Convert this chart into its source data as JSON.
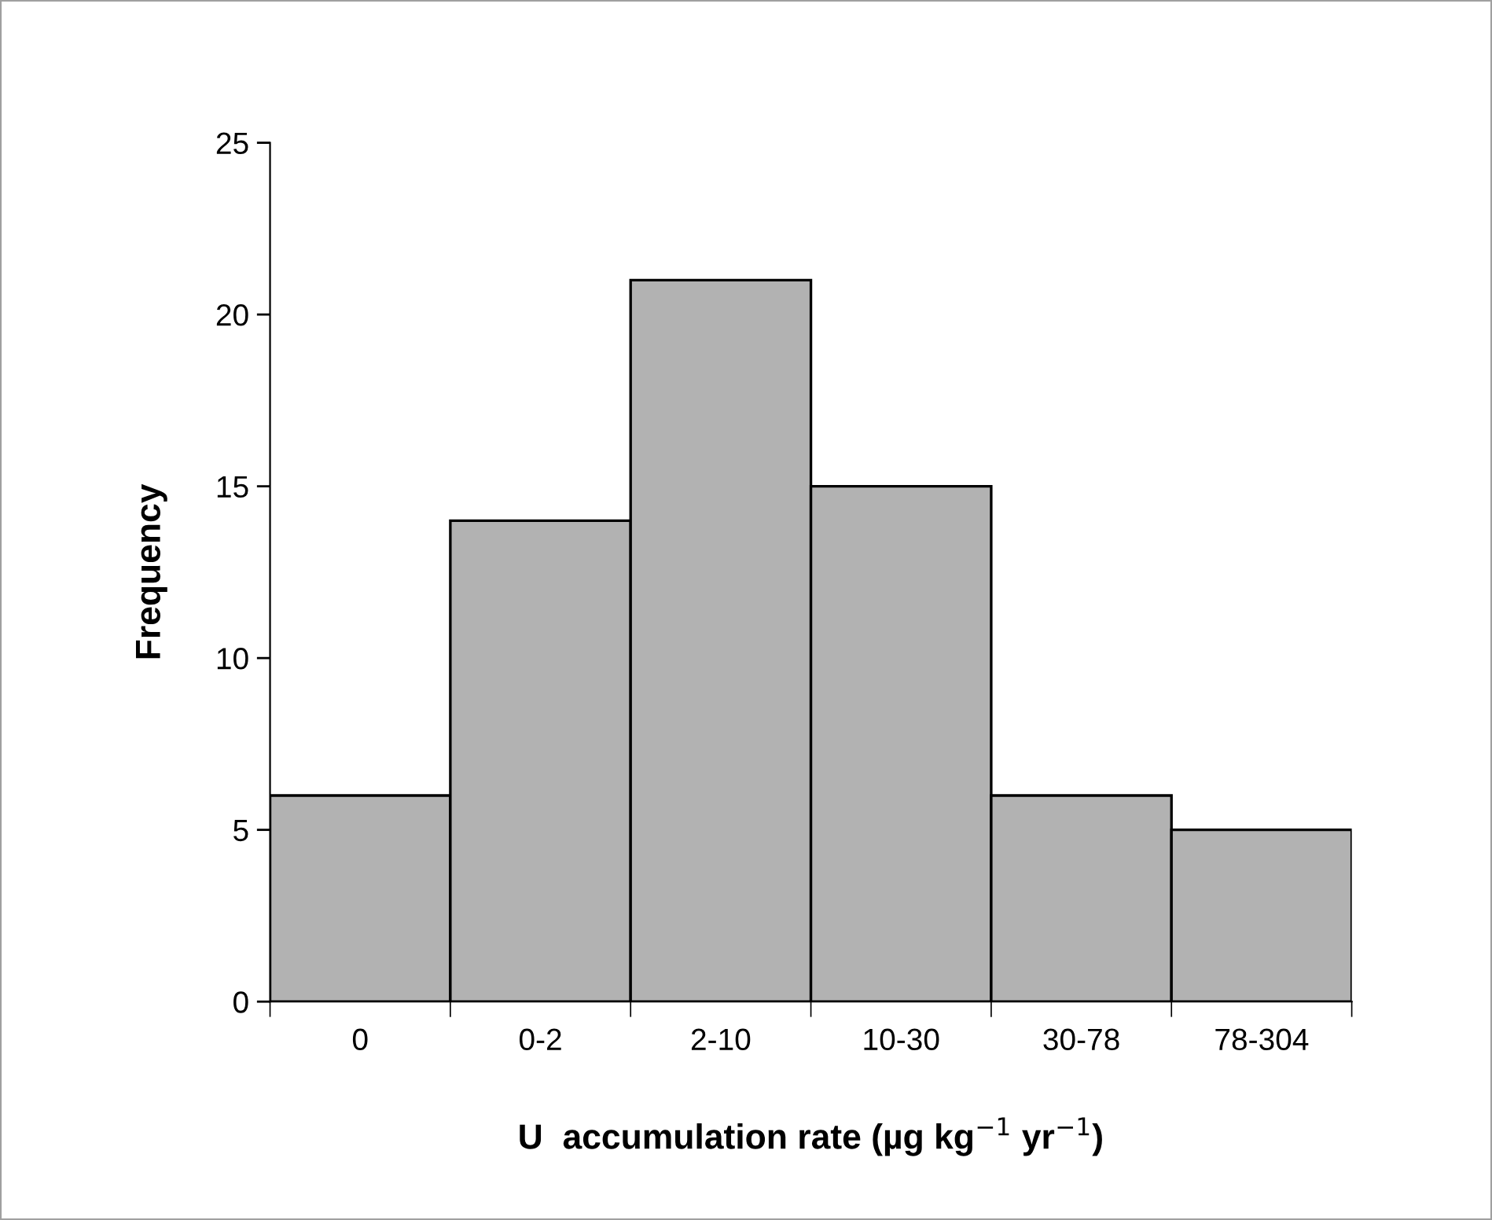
{
  "chart_data": {
    "type": "bar",
    "xlabel": "U  accumulation rate (µg kg$^{−1}$ yr$^{−1}$)",
    "ylabel": "Frequency",
    "categories": [
      "0",
      "0-2",
      "2-10",
      "10-30",
      "30-78",
      "78-304"
    ],
    "values": [
      6,
      14,
      21,
      15,
      6,
      5
    ],
    "color": "#b2b2b2",
    "ylim": [
      0,
      25
    ],
    "yticks": [
      0,
      5,
      10,
      15,
      20,
      25
    ]
  }
}
